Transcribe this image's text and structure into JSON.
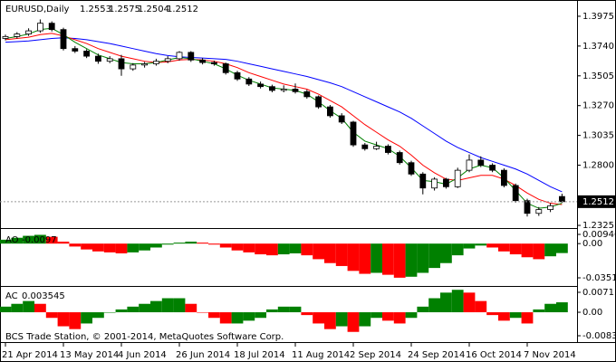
{
  "chart_data": {
    "type": "candlestick",
    "symbol": "EURUSD,Daily",
    "up_color": "#ffffff",
    "down_color": "#000000",
    "categories": [
      "21 Apr 2014",
      null,
      null,
      null,
      null,
      "13 May 2014",
      null,
      null,
      null,
      null,
      "4 Jun 2014",
      null,
      null,
      null,
      null,
      "26 Jun 2014",
      null,
      null,
      null,
      null,
      "18 Jul 2014",
      null,
      null,
      null,
      null,
      "11 Aug 2014",
      null,
      null,
      null,
      null,
      "2 Sep 2014",
      null,
      null,
      null,
      null,
      "24 Sep 2014",
      null,
      null,
      null,
      null,
      "16 Oct 2014",
      null,
      null,
      null,
      null,
      "7 Nov 2014",
      null,
      null,
      null
    ],
    "ohlc": [
      [
        1.38,
        1.383,
        1.3785,
        1.3815
      ],
      [
        1.3815,
        1.385,
        1.38,
        1.3835
      ],
      [
        1.3835,
        1.388,
        1.382,
        1.386
      ],
      [
        1.386,
        1.395,
        1.3845,
        1.392
      ],
      [
        1.392,
        1.3935,
        1.3855,
        1.387
      ],
      [
        1.387,
        1.3885,
        1.3705,
        1.372
      ],
      [
        1.372,
        1.374,
        1.3685,
        1.37
      ],
      [
        1.37,
        1.3715,
        1.3645,
        1.366
      ],
      [
        1.366,
        1.368,
        1.36,
        1.362
      ],
      [
        1.362,
        1.366,
        1.3605,
        1.364
      ],
      [
        1.364,
        1.367,
        1.3505,
        1.356
      ],
      [
        1.356,
        1.3605,
        1.3545,
        1.359
      ],
      [
        1.359,
        1.3615,
        1.357,
        1.36
      ],
      [
        1.36,
        1.364,
        1.3585,
        1.362
      ],
      [
        1.362,
        1.366,
        1.3605,
        1.364
      ],
      [
        1.364,
        1.37,
        1.3625,
        1.369
      ],
      [
        1.369,
        1.37,
        1.3615,
        1.363
      ],
      [
        1.363,
        1.3645,
        1.3595,
        1.361
      ],
      [
        1.361,
        1.3625,
        1.3585,
        1.36
      ],
      [
        1.36,
        1.361,
        1.3515,
        1.353
      ],
      [
        1.353,
        1.3545,
        1.3465,
        1.348
      ],
      [
        1.348,
        1.3495,
        1.3425,
        1.344
      ],
      [
        1.344,
        1.346,
        1.3405,
        1.342
      ],
      [
        1.342,
        1.3435,
        1.3375,
        1.339
      ],
      [
        1.339,
        1.343,
        1.3375,
        1.34
      ],
      [
        1.34,
        1.3445,
        1.3365,
        1.338
      ],
      [
        1.338,
        1.3395,
        1.3325,
        1.334
      ],
      [
        1.334,
        1.335,
        1.3245,
        1.326
      ],
      [
        1.326,
        1.3275,
        1.3175,
        1.319
      ],
      [
        1.319,
        1.321,
        1.3125,
        1.314
      ],
      [
        1.314,
        1.315,
        1.2945,
        1.296
      ],
      [
        1.296,
        1.2975,
        1.2915,
        1.293
      ],
      [
        1.293,
        1.2985,
        1.292,
        1.295
      ],
      [
        1.295,
        1.2965,
        1.2885,
        1.29
      ],
      [
        1.29,
        1.2915,
        1.2805,
        1.282
      ],
      [
        1.282,
        1.2835,
        1.2715,
        1.273
      ],
      [
        1.273,
        1.2745,
        1.257,
        1.262
      ],
      [
        1.262,
        1.2705,
        1.26,
        1.269
      ],
      [
        1.269,
        1.27,
        1.2615,
        1.263
      ],
      [
        1.263,
        1.278,
        1.262,
        1.276
      ],
      [
        1.276,
        1.2885,
        1.2745,
        1.284
      ],
      [
        1.284,
        1.287,
        1.2785,
        1.28
      ],
      [
        1.28,
        1.2815,
        1.2745,
        1.276
      ],
      [
        1.276,
        1.2775,
        1.2625,
        1.264
      ],
      [
        1.264,
        1.2655,
        1.2505,
        1.252
      ],
      [
        1.252,
        1.2535,
        1.2395,
        1.242
      ],
      [
        1.242,
        1.247,
        1.24,
        1.245
      ],
      [
        1.245,
        1.25,
        1.243,
        1.248
      ],
      [
        1.2553,
        1.2575,
        1.2504,
        1.2512
      ]
    ],
    "ylim": [
      1.2304,
      1.4089
    ],
    "yticks": [
      1.3975,
      {
        "value": 1.374,
        "label": "1.3740"
      },
      1.3505,
      {
        "value": 1.327,
        "label": "1.3270"
      },
      1.3035,
      {
        "value": 1.28,
        "label": "1.2800"
      },
      1.2325
    ],
    "moving_averages": [
      {
        "color": "#0000ff",
        "values": [
          1.377,
          1.3775,
          1.378,
          1.379,
          1.38,
          1.3805,
          1.38,
          1.379,
          1.3775,
          1.376,
          1.374,
          1.372,
          1.37,
          1.368,
          1.3665,
          1.3655,
          1.365,
          1.3645,
          1.364,
          1.3635,
          1.362,
          1.36,
          1.358,
          1.356,
          1.354,
          1.352,
          1.35,
          1.3475,
          1.345,
          1.342,
          1.338,
          1.334,
          1.33,
          1.326,
          1.322,
          1.317,
          1.311,
          1.305,
          1.299,
          1.294,
          1.29,
          1.286,
          1.283,
          1.28,
          1.277,
          1.273,
          1.268,
          1.263,
          1.259
        ]
      },
      {
        "color": "#ff0000",
        "values": [
          1.379,
          1.38,
          1.381,
          1.383,
          1.384,
          1.382,
          1.379,
          1.376,
          1.372,
          1.369,
          1.366,
          1.364,
          1.362,
          1.361,
          1.3615,
          1.363,
          1.3635,
          1.363,
          1.362,
          1.36,
          1.357,
          1.353,
          1.35,
          1.347,
          1.344,
          1.342,
          1.34,
          1.336,
          1.331,
          1.326,
          1.319,
          1.312,
          1.306,
          1.3,
          1.295,
          1.288,
          1.28,
          1.274,
          1.269,
          1.268,
          1.27,
          1.272,
          1.272,
          1.269,
          1.264,
          1.258,
          1.253,
          1.25,
          1.249
        ]
      },
      {
        "color": "#008000",
        "values": [
          1.38,
          1.3815,
          1.3835,
          1.387,
          1.388,
          1.383,
          1.377,
          1.372,
          1.367,
          1.364,
          1.361,
          1.36,
          1.36,
          1.361,
          1.363,
          1.365,
          1.364,
          1.362,
          1.36,
          1.356,
          1.351,
          1.347,
          1.344,
          1.341,
          1.34,
          1.339,
          1.336,
          1.33,
          1.323,
          1.317,
          1.306,
          1.299,
          1.296,
          1.293,
          1.287,
          1.278,
          1.268,
          1.267,
          1.265,
          1.27,
          1.277,
          1.28,
          1.278,
          1.27,
          1.26,
          1.25,
          1.246,
          1.247,
          1.25
        ]
      }
    ],
    "ao": {
      "name": "AO",
      "up_color": "#008000",
      "down_color": "#ff0000",
      "values": [
        0.004,
        0.006,
        0.008,
        0.009,
        0.007,
        0.002,
        -0.003,
        -0.006,
        -0.008,
        -0.009,
        -0.01,
        -0.009,
        -0.007,
        -0.004,
        -0.001,
        0.001,
        0.002,
        0.001,
        -0.001,
        -0.004,
        -0.007,
        -0.009,
        -0.011,
        -0.012,
        -0.011,
        -0.01,
        -0.012,
        -0.016,
        -0.02,
        -0.023,
        -0.028,
        -0.031,
        -0.03,
        -0.032,
        -0.035,
        -0.034,
        -0.03,
        -0.025,
        -0.02,
        -0.012,
        -0.005,
        -0.002,
        -0.004,
        -0.008,
        -0.011,
        -0.014,
        -0.016,
        -0.013,
        -0.0097
      ],
      "ylim": [
        -0.04348,
        0.0141
      ],
      "yticks": [
        0.00946,
        {
          "value": 0,
          "label": "0.00"
        },
        -0.03512
      ]
    },
    "ac": {
      "name": "AC",
      "up_color": "#008000",
      "down_color": "#ff0000",
      "values": [
        0.002,
        0.003,
        0.004,
        0.003,
        -0.002,
        -0.005,
        -0.006,
        -0.004,
        -0.002,
        0.0,
        0.001,
        0.002,
        0.003,
        0.004,
        0.005,
        0.005,
        0.003,
        0.0,
        -0.002,
        -0.004,
        -0.004,
        -0.003,
        -0.002,
        0.001,
        0.002,
        0.002,
        -0.001,
        -0.004,
        -0.006,
        -0.005,
        -0.007,
        -0.005,
        -0.002,
        -0.003,
        -0.004,
        -0.002,
        0.002,
        0.005,
        0.007,
        0.008,
        0.007,
        0.004,
        -0.001,
        -0.003,
        -0.002,
        -0.004,
        0.001,
        0.003,
        0.003545
      ],
      "ylim": [
        -0.01063,
        0.00904
      ],
      "yticks": [
        0.00711,
        {
          "value": 0,
          "label": "0.00"
        },
        -0.00837
      ]
    },
    "watermark": "BCS Trade Station, © 2001-2014, MetaQuotes Software Corp."
  }
}
